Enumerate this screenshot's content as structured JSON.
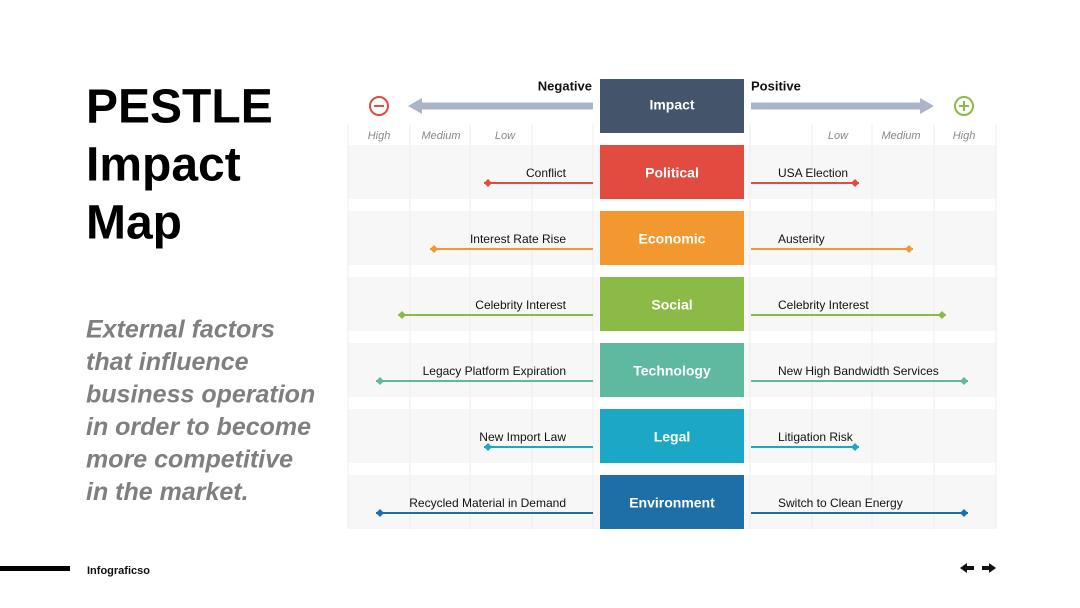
{
  "header": {
    "title_lines": [
      "PESTLE",
      "Impact",
      "Map"
    ],
    "subtitle_lines": [
      "External factors",
      "that influence",
      "business operation",
      "in order to become",
      "more competitive",
      "in the market."
    ]
  },
  "map": {
    "negative_label": "Negative",
    "positive_label": "Positive",
    "center_header": "Impact",
    "scale_left": [
      "High",
      "Medium",
      "Low"
    ],
    "scale_right": [
      "Low",
      "Medium",
      "High"
    ],
    "rows": [
      {
        "factor": "Political",
        "negative": "Conflict",
        "positive": "USA Election"
      },
      {
        "factor": "Economic",
        "negative": "Interest Rate Rise",
        "positive": "Austerity"
      },
      {
        "factor": "Social",
        "negative": "Celebrity Interest",
        "positive": "Celebrity Interest"
      },
      {
        "factor": "Technology",
        "negative": "Legacy Platform Expiration",
        "positive": "New High Bandwidth Services"
      },
      {
        "factor": "Legal",
        "negative": "New Import Law",
        "positive": "Litigation Risk"
      },
      {
        "factor": "Environment",
        "negative": "Recycled Material in Demand",
        "positive": "Switch to Clean Energy"
      }
    ]
  },
  "footer": {
    "brand": "Infograficso"
  }
}
